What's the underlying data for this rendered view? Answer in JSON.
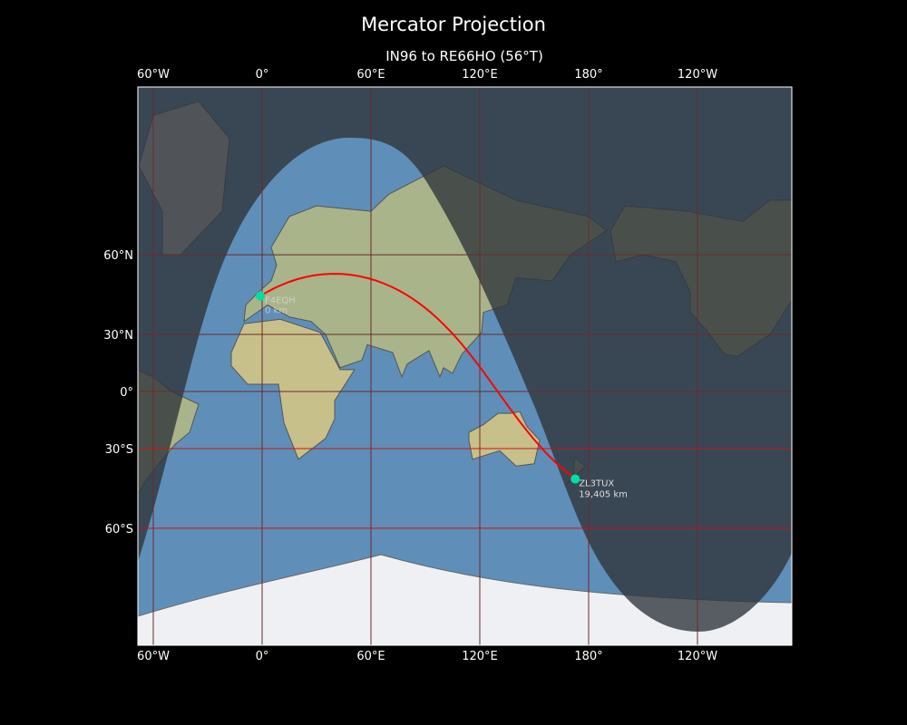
{
  "title": "Mercator Projection",
  "subtitle": "IN96 to RE66HO (56°T)",
  "chart_data": {
    "type": "map",
    "projection": "Mercator",
    "lon_ticks": [
      {
        "lon": -60,
        "label": "60°W"
      },
      {
        "lon": 0,
        "label": "0°"
      },
      {
        "lon": 60,
        "label": "60°E"
      },
      {
        "lon": 120,
        "label": "120°E"
      },
      {
        "lon": 180,
        "label": "180°"
      },
      {
        "lon": 240,
        "label": "120°W"
      }
    ],
    "lat_ticks": [
      {
        "lat": 60,
        "label": "60°N"
      },
      {
        "lat": 30,
        "label": "30°N"
      },
      {
        "lat": 0,
        "label": "0°"
      },
      {
        "lat": -30,
        "label": "30°S"
      },
      {
        "lat": -60,
        "label": "60°S"
      }
    ],
    "highlighted_lat_lines": [
      -30,
      -60
    ],
    "start": {
      "locator": "IN96",
      "call": "F4EQH",
      "distance": "0 km",
      "lat": 46.5,
      "lon": -1
    },
    "end": {
      "locator": "RE66HO",
      "call": "ZL3TUX",
      "distance": "19,405 km",
      "lat": -43.4,
      "lon": 172.6
    },
    "bearing": "56°T",
    "colors": {
      "path": "#ff0000",
      "marker": "#00e0a0",
      "ocean": "#5f8fb8",
      "night_shade": "#3a3f46",
      "grid": "#6b2a2a",
      "highlight_grid": "#d01010"
    }
  }
}
